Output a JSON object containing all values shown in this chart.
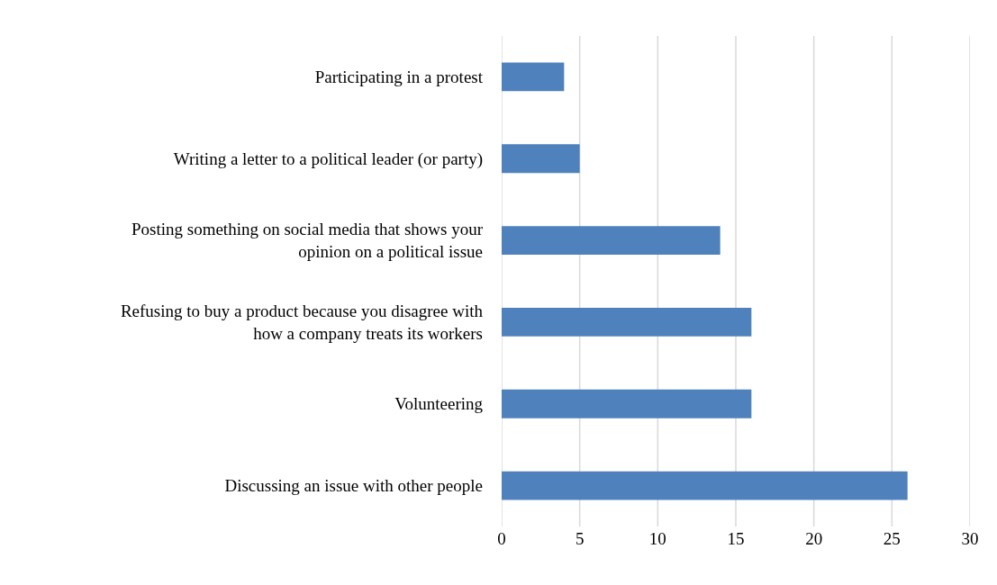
{
  "chart_data": {
    "type": "bar",
    "orientation": "horizontal",
    "categories": [
      "Participating in a protest",
      "Writing a letter to a political leader (or party)",
      "Posting something on social media that shows your opinion on a political issue",
      "Refusing to buy a product because you disagree with how a company treats its workers",
      "Volunteering",
      "Discussing an issue with other people"
    ],
    "values": [
      4,
      5,
      14,
      16,
      16,
      26
    ],
    "color": "#4f81bd",
    "xlim": [
      0,
      30
    ],
    "xticks": [
      0,
      5,
      10,
      15,
      20,
      25,
      30
    ],
    "grid": "x"
  }
}
